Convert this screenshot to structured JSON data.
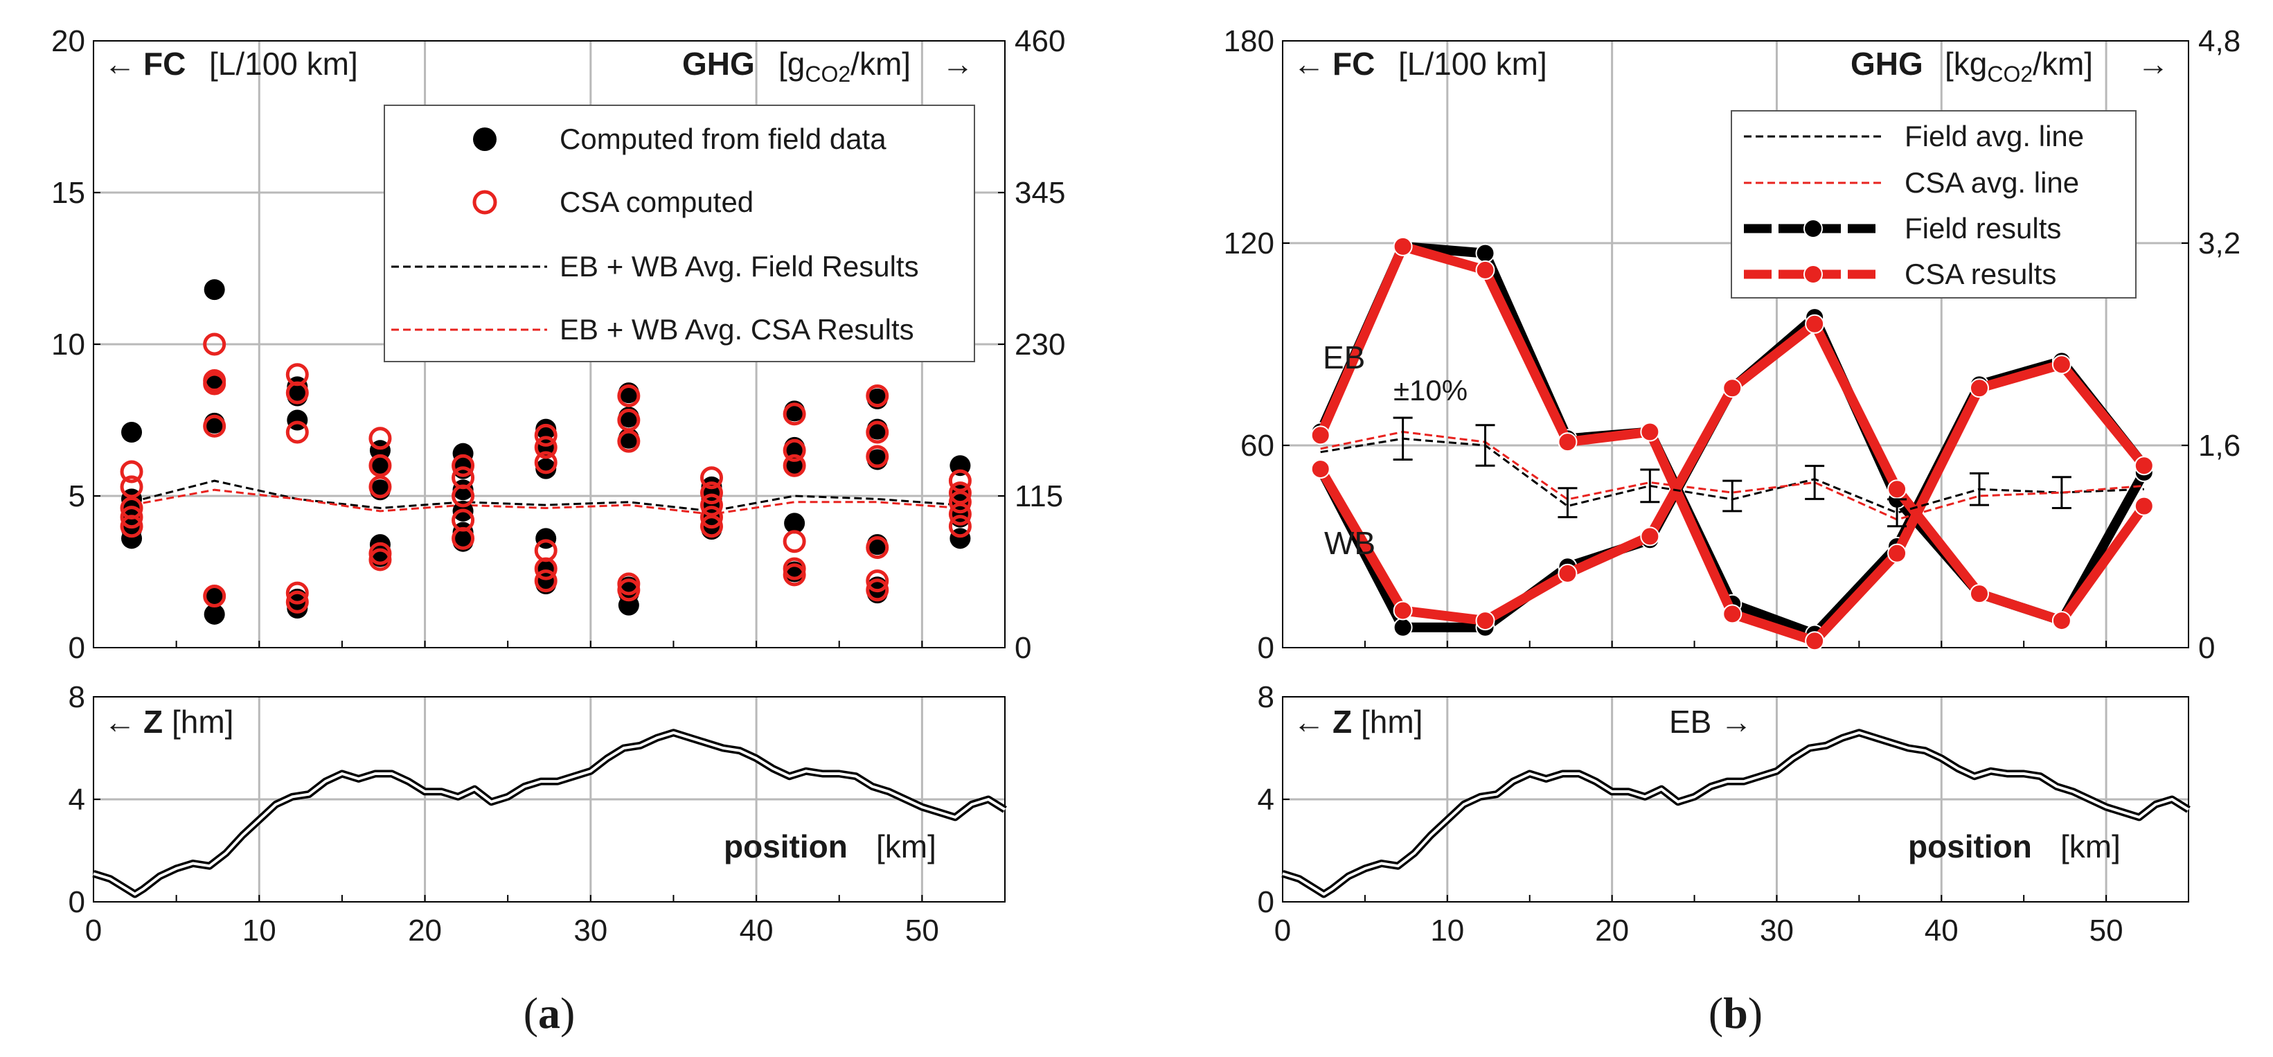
{
  "chart_data": [
    {
      "id": "a-upper",
      "type": "scatter",
      "header_left": {
        "arrow": "←",
        "var": "FC",
        "unit": "[L/100 km]"
      },
      "header_right": {
        "var": "GHG",
        "unit_pre": "[g",
        "unit_sub": "CO2",
        "unit_post": "/km]",
        "arrow": "→"
      },
      "ylim": [
        0,
        20
      ],
      "yticks": [
        "0",
        "5",
        "10",
        "15",
        "20"
      ],
      "y2lim": [
        0,
        460
      ],
      "y2ticks": [
        "0",
        "115",
        "230",
        "345",
        "460"
      ],
      "xlim": [
        0,
        55
      ],
      "legend": [
        {
          "label": "Computed from field data",
          "kind": "filled-dot",
          "color": "#000000"
        },
        {
          "label": "CSA computed",
          "kind": "open-dot",
          "color": "#e8231f"
        },
        {
          "label": "EB + WB Avg. Field Results",
          "kind": "dash",
          "color": "#000000"
        },
        {
          "label": "EB + WB Avg. CSA Results",
          "kind": "dash",
          "color": "#e8231f"
        }
      ],
      "series": [
        {
          "name": "Computed from field data",
          "color": "#000000",
          "points": [
            [
              2.3,
              7.1
            ],
            [
              2.3,
              4.9
            ],
            [
              2.3,
              4.5
            ],
            [
              2.3,
              4.2
            ],
            [
              2.3,
              3.9
            ],
            [
              2.3,
              3.6
            ],
            [
              7.3,
              11.8
            ],
            [
              7.3,
              8.8
            ],
            [
              7.3,
              7.4
            ],
            [
              7.3,
              1.7
            ],
            [
              7.3,
              1.1
            ],
            [
              12.3,
              8.6
            ],
            [
              12.3,
              8.3
            ],
            [
              12.3,
              7.5
            ],
            [
              12.3,
              1.6
            ],
            [
              12.3,
              1.3
            ],
            [
              17.3,
              6.5
            ],
            [
              17.3,
              6.0
            ],
            [
              17.3,
              5.2
            ],
            [
              17.3,
              3.4
            ],
            [
              17.3,
              3.2
            ],
            [
              17.3,
              3.0
            ],
            [
              22.3,
              6.4
            ],
            [
              22.3,
              5.9
            ],
            [
              22.3,
              5.2
            ],
            [
              22.3,
              4.5
            ],
            [
              22.3,
              3.8
            ],
            [
              22.3,
              3.5
            ],
            [
              27.3,
              7.2
            ],
            [
              27.3,
              6.6
            ],
            [
              27.3,
              5.9
            ],
            [
              27.3,
              3.6
            ],
            [
              27.3,
              2.6
            ],
            [
              27.3,
              2.1
            ],
            [
              32.3,
              8.4
            ],
            [
              32.3,
              7.6
            ],
            [
              32.3,
              6.9
            ],
            [
              32.3,
              2.0
            ],
            [
              32.3,
              1.8
            ],
            [
              32.3,
              1.4
            ],
            [
              37.3,
              5.3
            ],
            [
              37.3,
              4.9
            ],
            [
              37.3,
              4.6
            ],
            [
              37.3,
              4.2
            ],
            [
              37.3,
              3.9
            ],
            [
              42.3,
              7.8
            ],
            [
              42.3,
              6.6
            ],
            [
              42.3,
              6.0
            ],
            [
              42.3,
              4.1
            ],
            [
              42.3,
              2.5
            ],
            [
              47.3,
              8.2
            ],
            [
              47.3,
              7.2
            ],
            [
              47.3,
              6.2
            ],
            [
              47.3,
              3.4
            ],
            [
              47.3,
              2.0
            ],
            [
              47.3,
              1.8
            ],
            [
              52.3,
              6.0
            ],
            [
              52.3,
              5.1
            ],
            [
              52.3,
              4.7
            ],
            [
              52.3,
              4.3
            ],
            [
              52.3,
              3.6
            ]
          ]
        },
        {
          "name": "CSA computed",
          "color": "#e8231f",
          "points": [
            [
              2.3,
              5.8
            ],
            [
              2.3,
              5.3
            ],
            [
              2.3,
              4.6
            ],
            [
              2.3,
              4.3
            ],
            [
              2.3,
              4.0
            ],
            [
              7.3,
              10.0
            ],
            [
              7.3,
              8.8
            ],
            [
              7.3,
              8.7
            ],
            [
              7.3,
              7.3
            ],
            [
              7.3,
              1.7
            ],
            [
              12.3,
              9.0
            ],
            [
              12.3,
              8.4
            ],
            [
              12.3,
              7.1
            ],
            [
              12.3,
              1.8
            ],
            [
              12.3,
              1.5
            ],
            [
              17.3,
              6.9
            ],
            [
              17.3,
              6.0
            ],
            [
              17.3,
              5.3
            ],
            [
              17.3,
              3.1
            ],
            [
              17.3,
              2.9
            ],
            [
              22.3,
              6.0
            ],
            [
              22.3,
              5.6
            ],
            [
              22.3,
              5.0
            ],
            [
              22.3,
              4.2
            ],
            [
              22.3,
              3.6
            ],
            [
              27.3,
              7.0
            ],
            [
              27.3,
              6.6
            ],
            [
              27.3,
              6.1
            ],
            [
              27.3,
              3.2
            ],
            [
              27.3,
              2.6
            ],
            [
              27.3,
              2.2
            ],
            [
              32.3,
              8.3
            ],
            [
              32.3,
              7.5
            ],
            [
              32.3,
              6.8
            ],
            [
              32.3,
              2.1
            ],
            [
              32.3,
              1.9
            ],
            [
              37.3,
              5.6
            ],
            [
              37.3,
              5.1
            ],
            [
              37.3,
              4.7
            ],
            [
              37.3,
              4.3
            ],
            [
              37.3,
              4.0
            ],
            [
              42.3,
              7.7
            ],
            [
              42.3,
              6.5
            ],
            [
              42.3,
              6.0
            ],
            [
              42.3,
              3.5
            ],
            [
              42.3,
              2.6
            ],
            [
              42.3,
              2.4
            ],
            [
              47.3,
              8.3
            ],
            [
              47.3,
              7.1
            ],
            [
              47.3,
              6.3
            ],
            [
              47.3,
              3.3
            ],
            [
              47.3,
              2.2
            ],
            [
              47.3,
              1.9
            ],
            [
              52.3,
              5.5
            ],
            [
              52.3,
              5.1
            ],
            [
              52.3,
              4.8
            ],
            [
              52.3,
              4.4
            ],
            [
              52.3,
              4.0
            ]
          ]
        },
        {
          "name": "EB + WB Avg. Field Results",
          "color": "#000000",
          "x": [
            2.3,
            7.3,
            12.3,
            17.3,
            22.3,
            27.3,
            32.3,
            37.3,
            42.3,
            47.3,
            52.3
          ],
          "y": [
            4.8,
            5.5,
            4.9,
            4.6,
            4.8,
            4.7,
            4.8,
            4.5,
            5.0,
            4.9,
            4.7
          ]
        },
        {
          "name": "EB + WB Avg. CSA Results",
          "color": "#e8231f",
          "x": [
            2.3,
            7.3,
            12.3,
            17.3,
            22.3,
            27.3,
            32.3,
            37.3,
            42.3,
            47.3,
            52.3
          ],
          "y": [
            4.7,
            5.2,
            4.9,
            4.5,
            4.7,
            4.6,
            4.7,
            4.4,
            4.8,
            4.8,
            4.6
          ]
        }
      ]
    },
    {
      "id": "b-upper",
      "type": "line",
      "header_left": {
        "arrow": "←",
        "var": "FC",
        "unit": "[L/100 km]"
      },
      "header_right": {
        "var": "GHG",
        "unit_pre": "[kg",
        "unit_sub": "CO2",
        "unit_post": "/km]",
        "arrow": "→"
      },
      "ylim": [
        0,
        180
      ],
      "yticks": [
        "0",
        "60",
        "120",
        "180"
      ],
      "y2lim": [
        0,
        4.8
      ],
      "y2ticks": [
        "0",
        "1,6",
        "3,2",
        "4,8"
      ],
      "xlim": [
        0,
        55
      ],
      "annotations": {
        "eb": "EB",
        "wb": "WB",
        "err": "±10%"
      },
      "legend": [
        {
          "label": "Field avg. line",
          "kind": "dash-thin",
          "color": "#000000"
        },
        {
          "label": "CSA avg. line",
          "kind": "dash-thin",
          "color": "#e8231f"
        },
        {
          "label": "Field results",
          "kind": "thick-dot",
          "color": "#000000"
        },
        {
          "label": "CSA results",
          "kind": "thick-dot",
          "color": "#e8231f"
        }
      ],
      "x": [
        2.3,
        7.3,
        12.3,
        17.3,
        22.3,
        27.3,
        32.3,
        37.3,
        42.3,
        47.3,
        52.3
      ],
      "series": [
        {
          "name": "Field results",
          "direction": "EB",
          "color": "#000000",
          "y": [
            64,
            119,
            117,
            62,
            64,
            13,
            4,
            30,
            78,
            85,
            54
          ]
        },
        {
          "name": "Field results",
          "direction": "WB",
          "color": "#000000",
          "y": [
            53,
            6,
            6,
            24,
            32,
            77,
            98,
            44,
            16,
            8,
            52
          ]
        },
        {
          "name": "CSA results",
          "direction": "EB",
          "color": "#e8231f",
          "y": [
            63,
            119,
            112,
            61,
            64,
            10,
            2,
            28,
            77,
            84,
            54
          ]
        },
        {
          "name": "CSA results",
          "direction": "WB",
          "color": "#e8231f",
          "y": [
            53,
            11,
            8,
            22,
            33,
            77,
            96,
            47,
            16,
            8,
            42
          ]
        },
        {
          "name": "Field avg. line",
          "color": "#000000",
          "y": [
            58,
            62,
            60,
            42,
            48,
            44,
            50,
            40,
            47,
            46,
            47
          ]
        },
        {
          "name": "CSA avg. line",
          "color": "#e8231f",
          "y": [
            59,
            64,
            61,
            44,
            49,
            46,
            49,
            38,
            45,
            46,
            48
          ]
        }
      ],
      "error_bars": {
        "x": [
          7.3,
          12.3,
          17.3,
          22.3,
          27.3,
          32.3,
          37.3,
          42.3,
          47.3
        ],
        "y": [
          62,
          60,
          43,
          48,
          45,
          49,
          40,
          47,
          46
        ],
        "relative": 0.1
      }
    },
    {
      "id": "a-lower",
      "type": "line",
      "header_left": {
        "arrow": "←",
        "var": "Z",
        "unit": "[hm]"
      },
      "xlabel": {
        "var": "position",
        "unit": "[km]"
      },
      "ylim": [
        0,
        8
      ],
      "yticks": [
        "0",
        "4",
        "8"
      ],
      "xlim": [
        0,
        55
      ],
      "xticks": [
        "0",
        "10",
        "20",
        "30",
        "40",
        "50"
      ],
      "profile": {
        "x": [
          0,
          1,
          2,
          2.5,
          3,
          4,
          5,
          6,
          7,
          8,
          9,
          10,
          11,
          12,
          13,
          14,
          15,
          16,
          17,
          18,
          19,
          20,
          21,
          22,
          23,
          24,
          25,
          26,
          27,
          28,
          29,
          30,
          31,
          32,
          33,
          34,
          35,
          36,
          37,
          38,
          39,
          40,
          41,
          42,
          43,
          44,
          45,
          46,
          47,
          48,
          49,
          50,
          51,
          52,
          53,
          54,
          55
        ],
        "y": [
          1.1,
          0.9,
          0.5,
          0.3,
          0.5,
          1.0,
          1.3,
          1.5,
          1.4,
          1.9,
          2.6,
          3.2,
          3.8,
          4.1,
          4.2,
          4.7,
          5.0,
          4.8,
          5.0,
          5.0,
          4.7,
          4.3,
          4.3,
          4.1,
          4.4,
          3.9,
          4.1,
          4.5,
          4.7,
          4.7,
          4.9,
          5.1,
          5.6,
          6.0,
          6.1,
          6.4,
          6.6,
          6.4,
          6.2,
          6.0,
          5.9,
          5.6,
          5.2,
          4.9,
          5.1,
          5.0,
          5.0,
          4.9,
          4.5,
          4.3,
          4.0,
          3.7,
          3.5,
          3.3,
          3.8,
          4.0,
          3.6
        ]
      }
    },
    {
      "id": "b-lower",
      "type": "line",
      "header_left": {
        "arrow": "←",
        "var": "Z",
        "unit": "[hm]"
      },
      "header_mid": "EB →",
      "xlabel": {
        "var": "position",
        "unit": "[km]"
      },
      "ylim": [
        0,
        8
      ],
      "yticks": [
        "0",
        "4",
        "8"
      ],
      "xlim": [
        0,
        55
      ],
      "xticks": [
        "0",
        "10",
        "20",
        "30",
        "40",
        "50"
      ]
    }
  ],
  "captions": [
    {
      "open": "(",
      "letter": "a",
      "close": ")"
    },
    {
      "open": "(",
      "letter": "b",
      "close": ")"
    }
  ]
}
